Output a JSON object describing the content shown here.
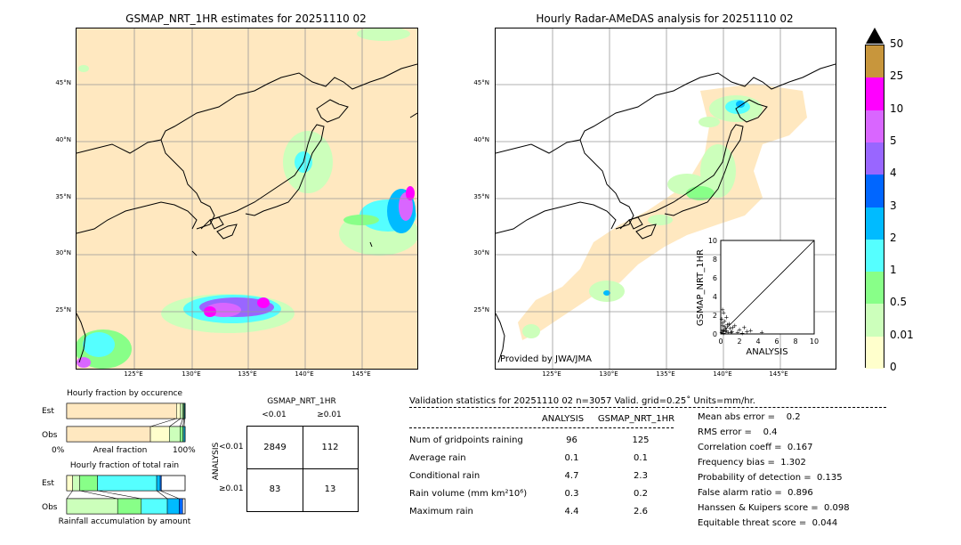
{
  "left_map": {
    "title": "GSMAP_NRT_1HR estimates for 20251110 02",
    "lat_labels": [
      "45°N",
      "40°N",
      "35°N",
      "30°N",
      "25°N"
    ],
    "lon_labels": [
      "125°E",
      "130°E",
      "135°E",
      "140°E",
      "145°E"
    ]
  },
  "right_map": {
    "title": "Hourly Radar-AMeDAS analysis for 20251110 02",
    "lat_labels": [
      "45°N",
      "40°N",
      "35°N",
      "30°N",
      "25°N"
    ],
    "lon_labels": [
      "125°E",
      "130°E",
      "135°E",
      "140°E",
      "145°E"
    ],
    "credit": "Provided by JWA/JMA"
  },
  "colorbar": {
    "labels": [
      "50",
      "25",
      "10",
      "5",
      "4",
      "3",
      "2",
      "1",
      "0.5",
      "0.01",
      "0"
    ],
    "colors": [
      "#c8963c",
      "#ff00ff",
      "#d966ff",
      "#9966ff",
      "#0066ff",
      "#00bbff",
      "#55ffff",
      "#88ff88",
      "#ccffbb",
      "#ffffcc",
      "#ffe8c0"
    ],
    "top_color": "#000000"
  },
  "chart_data": [
    {
      "type": "scatter",
      "title": "",
      "xlabel": "ANALYSIS",
      "ylabel": "GSMAP_NRT_1HR",
      "xlim": [
        0,
        10
      ],
      "ylim": [
        0,
        10
      ],
      "x_ticks": [
        "0",
        "2",
        "4",
        "6",
        "8",
        "10"
      ],
      "y_ticks": [
        "0",
        "2",
        "4",
        "6",
        "8",
        "10"
      ],
      "points": [
        {
          "x": 0.1,
          "y": 0.2
        },
        {
          "x": 0.2,
          "y": 0.5
        },
        {
          "x": 0.3,
          "y": 0.1
        },
        {
          "x": 0.4,
          "y": 0.8
        },
        {
          "x": 0.5,
          "y": 0.3
        },
        {
          "x": 0.2,
          "y": 1.2
        },
        {
          "x": 0.1,
          "y": 1.6
        },
        {
          "x": 0.6,
          "y": 0.4
        },
        {
          "x": 0.8,
          "y": 0.2
        },
        {
          "x": 0.3,
          "y": 2.3
        },
        {
          "x": 0.2,
          "y": 2.6
        },
        {
          "x": 1.0,
          "y": 0.6
        },
        {
          "x": 1.2,
          "y": 0.3
        },
        {
          "x": 1.5,
          "y": 0.9
        },
        {
          "x": 1.8,
          "y": 0.2
        },
        {
          "x": 2.0,
          "y": 0.5
        },
        {
          "x": 2.3,
          "y": 0.1
        },
        {
          "x": 2.8,
          "y": 0.3
        },
        {
          "x": 3.2,
          "y": 0.4
        },
        {
          "x": 4.4,
          "y": 0.2
        },
        {
          "x": 0.7,
          "y": 1.0
        },
        {
          "x": 0.4,
          "y": 1.4
        },
        {
          "x": 0.9,
          "y": 1.1
        },
        {
          "x": 0.5,
          "y": 0.6
        },
        {
          "x": 1.3,
          "y": 0.7
        },
        {
          "x": 0.2,
          "y": 0.9
        },
        {
          "x": 0.6,
          "y": 1.8
        },
        {
          "x": 1.1,
          "y": 0.2
        },
        {
          "x": 0.3,
          "y": 0.4
        },
        {
          "x": 2.5,
          "y": 0.7
        }
      ]
    },
    {
      "type": "bar",
      "title": "Hourly fraction by occurence",
      "categories": [
        "Est",
        "Obs"
      ],
      "xlabel": "Areal fraction",
      "x_ticks": [
        "0%",
        "100%"
      ],
      "series": [
        {
          "color": "#ffe8c0",
          "values": [
            0.927,
            0.707
          ]
        },
        {
          "color": "#ffffcc",
          "values": [
            0.035,
            0.16
          ]
        },
        {
          "color": "#ccffbb",
          "values": [
            0.02,
            0.09
          ]
        },
        {
          "color": "#88ff88",
          "values": [
            0.008,
            0.025
          ]
        },
        {
          "color": "#55ffff",
          "values": [
            0.006,
            0.01
          ]
        },
        {
          "color": "#00bbff",
          "values": [
            0.004,
            0.008
          ]
        }
      ]
    },
    {
      "type": "bar",
      "title": "Hourly fraction of total rain",
      "categories": [
        "Est",
        "Obs"
      ],
      "xlabel": "Rainfall accumulation by amount",
      "series": [
        {
          "color": "#ffffcc",
          "values": [
            0.05,
            0.0
          ]
        },
        {
          "color": "#ccffbb",
          "values": [
            0.06,
            0.43
          ]
        },
        {
          "color": "#88ff88",
          "values": [
            0.15,
            0.2
          ]
        },
        {
          "color": "#55ffff",
          "values": [
            0.5,
            0.22
          ]
        },
        {
          "color": "#00bbff",
          "values": [
            0.03,
            0.1
          ]
        },
        {
          "color": "#0066ff",
          "values": [
            0.01,
            0.03
          ]
        }
      ]
    },
    {
      "type": "table",
      "title": "GSMAP_NRT_1HR",
      "col_headers": [
        "<0.01",
        "≥0.01"
      ],
      "row_label": "ANALYSIS",
      "row_headers": [
        "<0.01",
        "≥0.01"
      ],
      "cells": [
        [
          "2849",
          "112"
        ],
        [
          "83",
          "13"
        ]
      ]
    }
  ],
  "stats": {
    "header": "Validation statistics for 20251110 02  n=3057 Valid. grid=0.25˚ Units=mm/hr.",
    "col_analysis": "ANALYSIS",
    "col_gsmap": "GSMAP_NRT_1HR",
    "rows": [
      {
        "label": "Num of gridpoints raining",
        "analysis": "96",
        "gsmap": "125"
      },
      {
        "label": "Average rain",
        "analysis": "0.1",
        "gsmap": "0.1"
      },
      {
        "label": "Conditional rain",
        "analysis": "4.7",
        "gsmap": "2.3"
      },
      {
        "label": "Rain volume (mm km²10⁶)",
        "analysis": "0.3",
        "gsmap": "0.2"
      },
      {
        "label": "Maximum rain",
        "analysis": "4.4",
        "gsmap": "2.6"
      }
    ],
    "scores": [
      "Mean abs error =    0.2",
      "RMS error =    0.4",
      "Correlation coeff =  0.167",
      "Frequency bias =  1.302",
      "Probability of detection =  0.135",
      "False alarm ratio =  0.896",
      "Hanssen & Kuipers score =  0.098",
      "Equitable threat score =  0.044"
    ]
  }
}
